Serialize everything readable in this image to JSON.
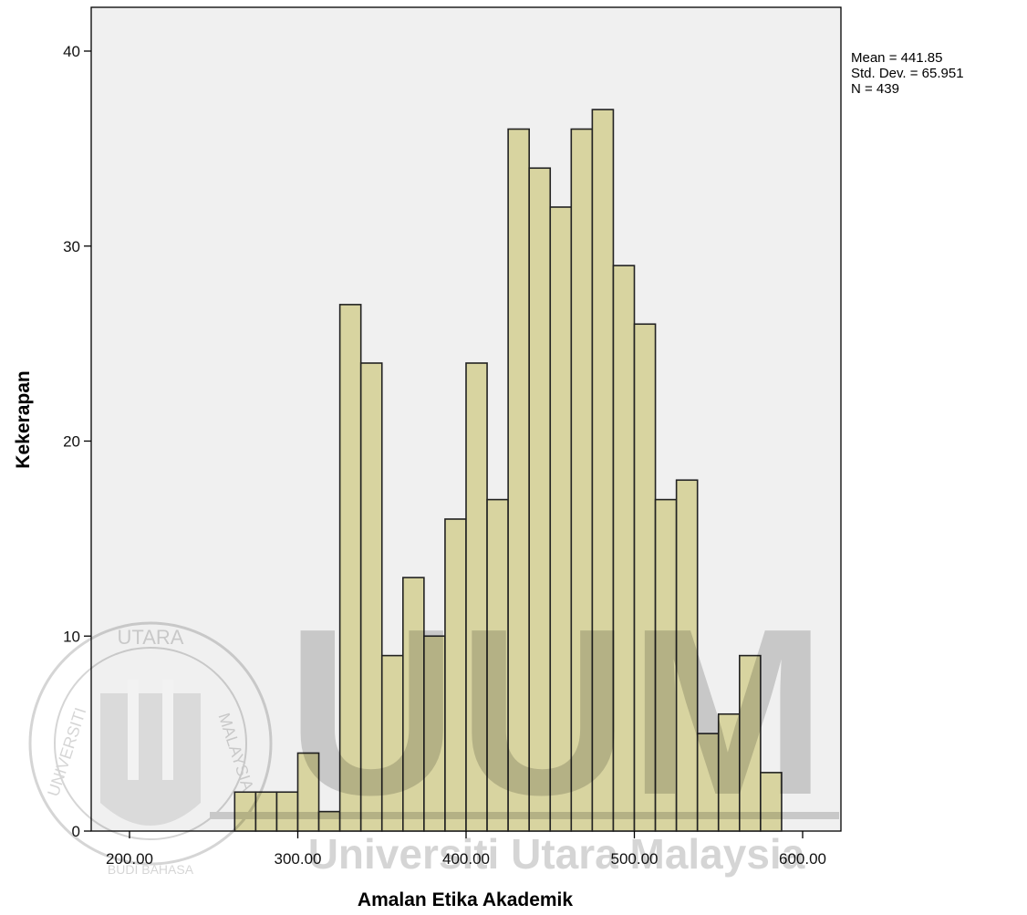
{
  "chart_data": {
    "type": "bar",
    "subtype": "histogram",
    "xlabel": "Amalan Etika Akademik",
    "ylabel": "Kekerapan",
    "xlim": [
      175,
      615
    ],
    "ylim": [
      0,
      42
    ],
    "x_ticks": [
      200,
      300,
      400,
      500,
      600
    ],
    "x_tick_labels": [
      "200.00",
      "300.00",
      "400.00",
      "500.00",
      "600.00"
    ],
    "y_ticks": [
      0,
      10,
      20,
      30,
      40
    ],
    "y_tick_labels": [
      "0",
      "10",
      "20",
      "30",
      "40"
    ],
    "bin_width": 12.5,
    "bins": [
      {
        "start": 262.5,
        "end": 275,
        "count": 2
      },
      {
        "start": 275,
        "end": 287.5,
        "count": 2
      },
      {
        "start": 287.5,
        "end": 300,
        "count": 2
      },
      {
        "start": 300,
        "end": 312.5,
        "count": 4
      },
      {
        "start": 312.5,
        "end": 325,
        "count": 1
      },
      {
        "start": 325,
        "end": 337.5,
        "count": 27
      },
      {
        "start": 337.5,
        "end": 350,
        "count": 24
      },
      {
        "start": 350,
        "end": 362.5,
        "count": 9
      },
      {
        "start": 362.5,
        "end": 375,
        "count": 13
      },
      {
        "start": 375,
        "end": 387.5,
        "count": 10
      },
      {
        "start": 387.5,
        "end": 400,
        "count": 16
      },
      {
        "start": 400,
        "end": 412.5,
        "count": 24
      },
      {
        "start": 412.5,
        "end": 425,
        "count": 17
      },
      {
        "start": 425,
        "end": 437.5,
        "count": 36
      },
      {
        "start": 437.5,
        "end": 450,
        "count": 34
      },
      {
        "start": 450,
        "end": 462.5,
        "count": 32
      },
      {
        "start": 462.5,
        "end": 475,
        "count": 36
      },
      {
        "start": 475,
        "end": 487.5,
        "count": 37
      },
      {
        "start": 487.5,
        "end": 500,
        "count": 29
      },
      {
        "start": 500,
        "end": 512.5,
        "count": 26
      },
      {
        "start": 512.5,
        "end": 525,
        "count": 17
      },
      {
        "start": 525,
        "end": 537.5,
        "count": 18
      },
      {
        "start": 537.5,
        "end": 550,
        "count": 5
      },
      {
        "start": 550,
        "end": 562.5,
        "count": 6
      },
      {
        "start": 562.5,
        "end": 575,
        "count": 9
      },
      {
        "start": 575,
        "end": 587.5,
        "count": 3
      }
    ],
    "stats": {
      "mean": "Mean = 441.85",
      "std_dev": "Std. Dev. = 65.951",
      "n": "N = 439"
    },
    "grid": false,
    "colors": {
      "bar_fill": "#d8d4a0",
      "bar_stroke": "#222222",
      "plot_background": "#f0f0f0"
    }
  },
  "watermark": {
    "text": "Universiti Utara Malaysia",
    "logo_text": "UUM",
    "seal_top": "UTARA",
    "seal_left": "UNIVERSITI",
    "seal_right": "MALAYSIA",
    "seal_bottom": "BUDI BAHASA"
  }
}
